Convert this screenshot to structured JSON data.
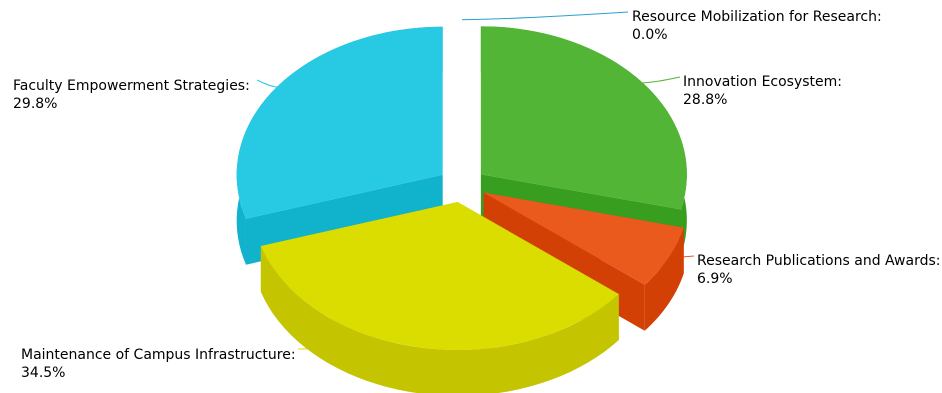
{
  "chart_data": {
    "type": "pie",
    "style": "3d-exploded",
    "slices": [
      {
        "label": "Innovation Ecosystem:",
        "value_text": "28.8%",
        "value": 28.8,
        "color": "#52b535",
        "side_color": "#389e1f"
      },
      {
        "label": "Research Publications and Awards:",
        "value_text": "6.9%",
        "value": 6.9,
        "color": "#ea5a1d",
        "side_color": "#d24005"
      },
      {
        "label": "Maintenance of Campus Infrastructure:",
        "value_text": "34.5%",
        "value": 34.5,
        "color": "#dbdc00",
        "side_color": "#c4c500"
      },
      {
        "label": "Faculty Empowerment Strategies:",
        "value_text": "29.8%",
        "value": 29.8,
        "color": "#27c9e3",
        "side_color": "#10b2cc"
      },
      {
        "label": "Resource Mobilization for Research:",
        "value_text": "0.0%",
        "value": 0.0,
        "color": "#2a9fd6",
        "side_color": "#1a86bb"
      }
    ]
  }
}
